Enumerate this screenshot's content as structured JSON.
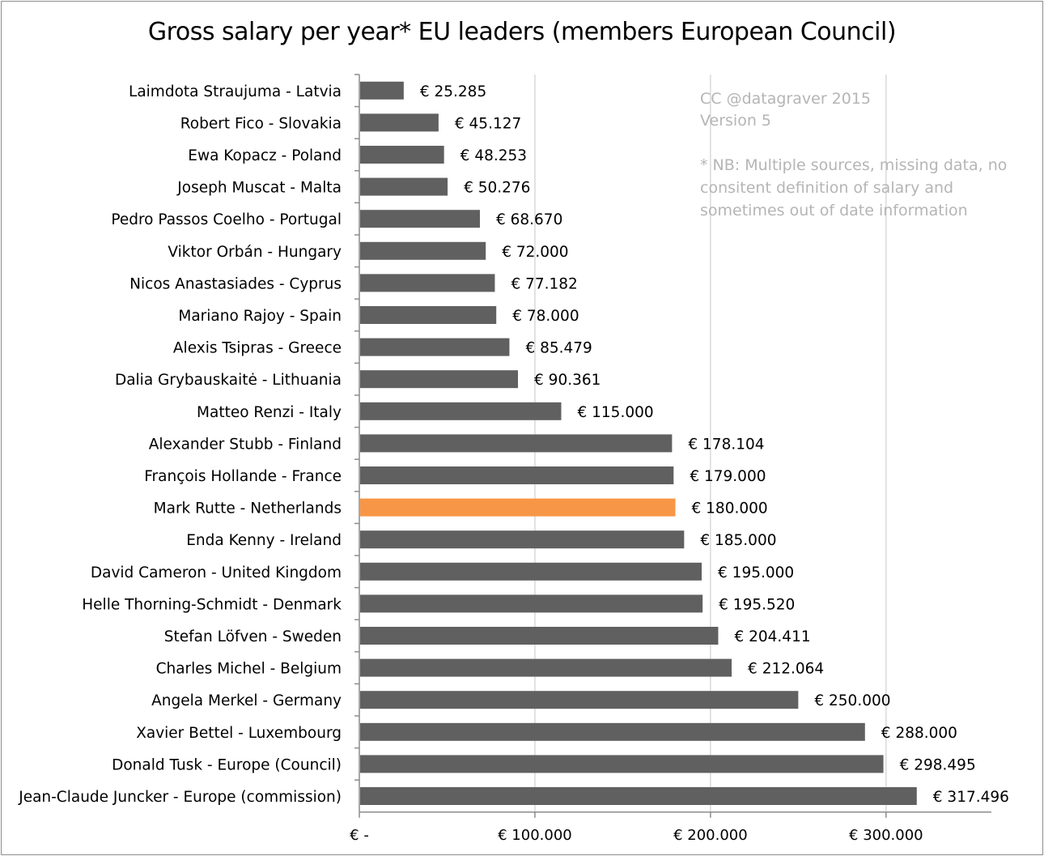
{
  "chart_data": {
    "type": "bar",
    "orientation": "horizontal",
    "title": "Gross salary per year* EU leaders (members European Council)",
    "categories": [
      "Laimdota Straujuma - Latvia",
      "Robert Fico - Slovakia",
      "Ewa Kopacz - Poland",
      "Joseph Muscat - Malta",
      "Pedro Passos Coelho - Portugal",
      "Viktor Orbán - Hungary",
      "Nicos Anastasiades - Cyprus",
      "Mariano Rajoy - Spain",
      "Alexis Tsipras - Greece",
      "Dalia Grybauskaitė - Lithuania",
      "Matteo Renzi - Italy",
      "Alexander Stubb - Finland",
      "François Hollande - France",
      "Mark Rutte - Netherlands",
      "Enda Kenny - Ireland",
      "David Cameron - United Kingdom",
      "Helle Thorning-Schmidt - Denmark",
      "Stefan Löfven - Sweden",
      "Charles Michel - Belgium",
      "Angela Merkel - Germany",
      "Xavier Bettel - Luxembourg",
      "Donald Tusk - Europe (Council)",
      "Jean-Claude Juncker - Europe (commission)"
    ],
    "values": [
      25285,
      45127,
      48253,
      50276,
      68670,
      72000,
      77182,
      78000,
      85479,
      90361,
      115000,
      178104,
      179000,
      180000,
      185000,
      195000,
      195520,
      204411,
      212064,
      250000,
      288000,
      298495,
      317496
    ],
    "data_labels": [
      "€ 25.285",
      "€ 45.127",
      "€ 48.253",
      "€ 50.276",
      "€ 68.670",
      "€ 72.000",
      "€ 77.182",
      "€ 78.000",
      "€ 85.479",
      "€ 90.361",
      "€ 115.000",
      "€ 178.104",
      "€ 179.000",
      "€ 180.000",
      "€ 185.000",
      "€ 195.000",
      "€ 195.520",
      "€ 204.411",
      "€ 212.064",
      "€ 250.000",
      "€ 288.000",
      "€ 298.495",
      "€ 317.496"
    ],
    "highlight_index": 13,
    "xlim": [
      0,
      360000
    ],
    "xticks": [
      0,
      100000,
      200000,
      300000
    ],
    "xtick_labels": [
      "€ -",
      "€ 100.000",
      "€ 200.000",
      "€ 300.000"
    ],
    "grid": "vertical",
    "colors": {
      "bar": "#606060",
      "highlight": "#f79646",
      "grid": "#d9d9d9",
      "note": "#b5b5b5"
    }
  },
  "notes": {
    "credit": "CC @datagraver 2015",
    "version": "Version 5",
    "footnote_lines": [
      "* NB: Multiple sources, missing data, no",
      "consitent definition of salary and",
      "sometimes out of date information"
    ]
  }
}
